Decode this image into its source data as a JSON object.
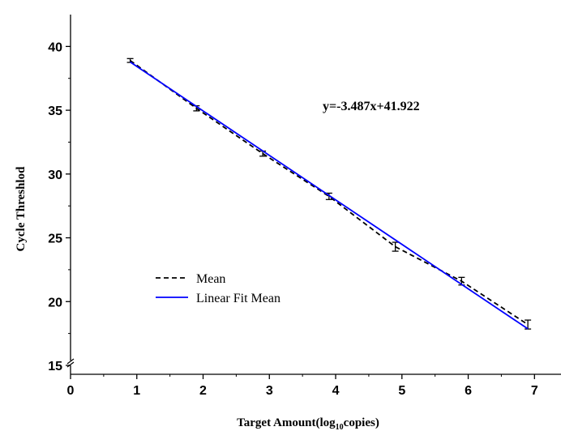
{
  "chart_data": {
    "type": "line",
    "xlabel": "Target Amount(log10copies)",
    "xlabel_parts": {
      "before": "Target Amount(log",
      "sub": "10",
      "after": "copies)"
    },
    "ylabel": "Cycle Threshlod",
    "xlim": [
      0,
      7.4
    ],
    "ylim": [
      14.3,
      42.5
    ],
    "y_axis_break": true,
    "x_ticks": [
      0,
      1,
      2,
      3,
      4,
      5,
      6,
      7
    ],
    "y_ticks": [
      15,
      20,
      25,
      30,
      35,
      40
    ],
    "grid": false,
    "legend_position": "center-left",
    "annotation": "y=-3.487x+41.922",
    "series": [
      {
        "name": "Mean",
        "style": "dashed",
        "color": "#000000",
        "x": [
          0.9,
          1.9,
          2.9,
          3.9,
          4.9,
          5.9,
          6.9
        ],
        "y": [
          38.9,
          35.15,
          31.6,
          28.25,
          24.3,
          21.6,
          18.2
        ],
        "error": [
          0.15,
          0.2,
          0.2,
          0.25,
          0.35,
          0.3,
          0.35
        ]
      },
      {
        "name": "Linear Fit Mean",
        "style": "solid",
        "color": "#0000ff",
        "x": [
          0.9,
          6.9
        ],
        "y": [
          38.784,
          17.862
        ]
      }
    ]
  }
}
